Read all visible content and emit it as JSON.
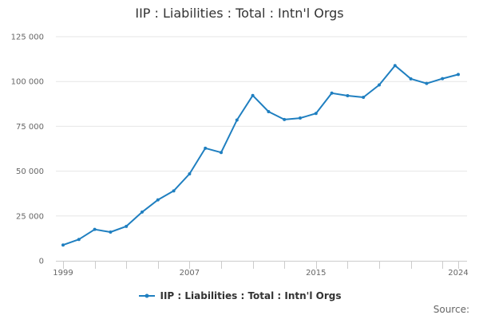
{
  "chart_data": {
    "type": "line",
    "title": "IIP : Liabilities : Total : Intn'l Orgs",
    "xlabel": "",
    "ylabel": "",
    "x": [
      1999,
      2000,
      2001,
      2002,
      2003,
      2004,
      2005,
      2006,
      2007,
      2008,
      2009,
      2010,
      2011,
      2012,
      2013,
      2014,
      2015,
      2016,
      2017,
      2018,
      2019,
      2020,
      2021,
      2022,
      2023,
      2024
    ],
    "series": [
      {
        "name": "IIP : Liabilities : Total : Intn'l Orgs",
        "color": "#1f7fc0",
        "values": [
          8800,
          11900,
          17500,
          16000,
          19200,
          27200,
          34000,
          39000,
          48500,
          62800,
          60400,
          78500,
          92200,
          83200,
          78800,
          79600,
          82200,
          93500,
          92100,
          91200,
          98100,
          108900,
          101500,
          98900,
          101600,
          103900
        ]
      }
    ],
    "xticks": [
      "1999",
      "2007",
      "2015",
      "2024"
    ],
    "xtick_values": [
      1999,
      2007,
      2015,
      2024
    ],
    "yticks": [
      "0",
      "25 000",
      "50 000",
      "75 000",
      "100 000",
      "125 000"
    ],
    "ytick_values": [
      0,
      25000,
      50000,
      75000,
      100000,
      125000
    ],
    "ylim": [
      0,
      125000
    ],
    "xlim": [
      1999,
      2024
    ],
    "grid": true,
    "legend_position": "bottom-center"
  },
  "source_label": "Source:"
}
